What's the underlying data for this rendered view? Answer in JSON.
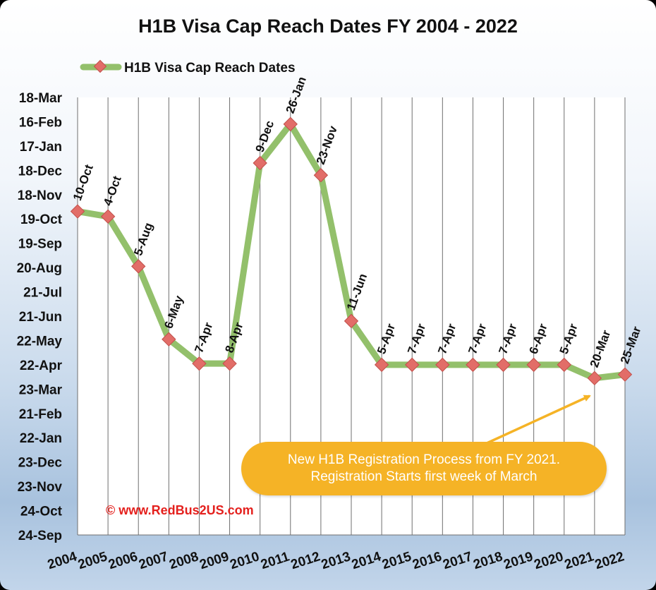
{
  "chart_data": {
    "type": "line",
    "title": "H1B Visa  Cap Reach Dates FY 2004 - 2022",
    "legend": {
      "label": "H1B Visa Cap Reach Dates",
      "position": "top-left"
    },
    "x": [
      "2004",
      "2005",
      "2006",
      "2007",
      "2008",
      "2009",
      "2010",
      "2011",
      "2012",
      "2013",
      "2014",
      "2015",
      "2016",
      "2017",
      "2018",
      "2019",
      "2020",
      "2021",
      "2022"
    ],
    "y_tick_labels": [
      "18-Mar",
      "16-Feb",
      "17-Jan",
      "18-Dec",
      "18-Nov",
      "19-Oct",
      "19-Sep",
      "20-Aug",
      "21-Jul",
      "21-Jun",
      "22-May",
      "22-Apr",
      "23-Mar",
      "21-Feb",
      "22-Jan",
      "23-Dec",
      "23-Nov",
      "24-Oct",
      "24-Sep"
    ],
    "series": [
      {
        "name": "H1B Visa Cap Reach Dates",
        "values": [
          {
            "label": "10-Oct",
            "position": 13.31
          },
          {
            "label": "4-Oct",
            "position": 13.1
          },
          {
            "label": "5-Aug",
            "position": 11.05
          },
          {
            "label": "6-May",
            "position": 8.05
          },
          {
            "label": "7-Apr",
            "position": 7.05
          },
          {
            "label": "8-Apr",
            "position": 7.05
          },
          {
            "label": "9-Dec",
            "position": 15.3
          },
          {
            "label": "26-Jan",
            "position": 16.9
          },
          {
            "label": "23-Nov",
            "position": 14.8
          },
          {
            "label": "11-Jun",
            "position": 8.8
          },
          {
            "label": "5-Apr",
            "position": 7.0
          },
          {
            "label": "7-Apr",
            "position": 7.0
          },
          {
            "label": "7-Apr",
            "position": 7.0
          },
          {
            "label": "7-Apr",
            "position": 7.0
          },
          {
            "label": "7-Apr",
            "position": 7.0
          },
          {
            "label": "6-Apr",
            "position": 7.0
          },
          {
            "label": "5-Apr",
            "position": 7.0
          },
          {
            "label": "20-Mar",
            "position": 6.45
          },
          {
            "label": "25-Mar",
            "position": 6.6
          }
        ]
      }
    ],
    "grid": {
      "vertical": true,
      "horizontal": false
    },
    "colors": {
      "line": "#93c06b",
      "marker": "#e26d68",
      "marker_stroke": "#c1504b",
      "callout": "#f5b326",
      "copyright": "#e4201d"
    }
  },
  "annotations": {
    "copyright": "© www.RedBus2US.com",
    "callout_line1": "New H1B Registration Process from FY 2021.",
    "callout_line2": "Registration Starts first week of March"
  }
}
